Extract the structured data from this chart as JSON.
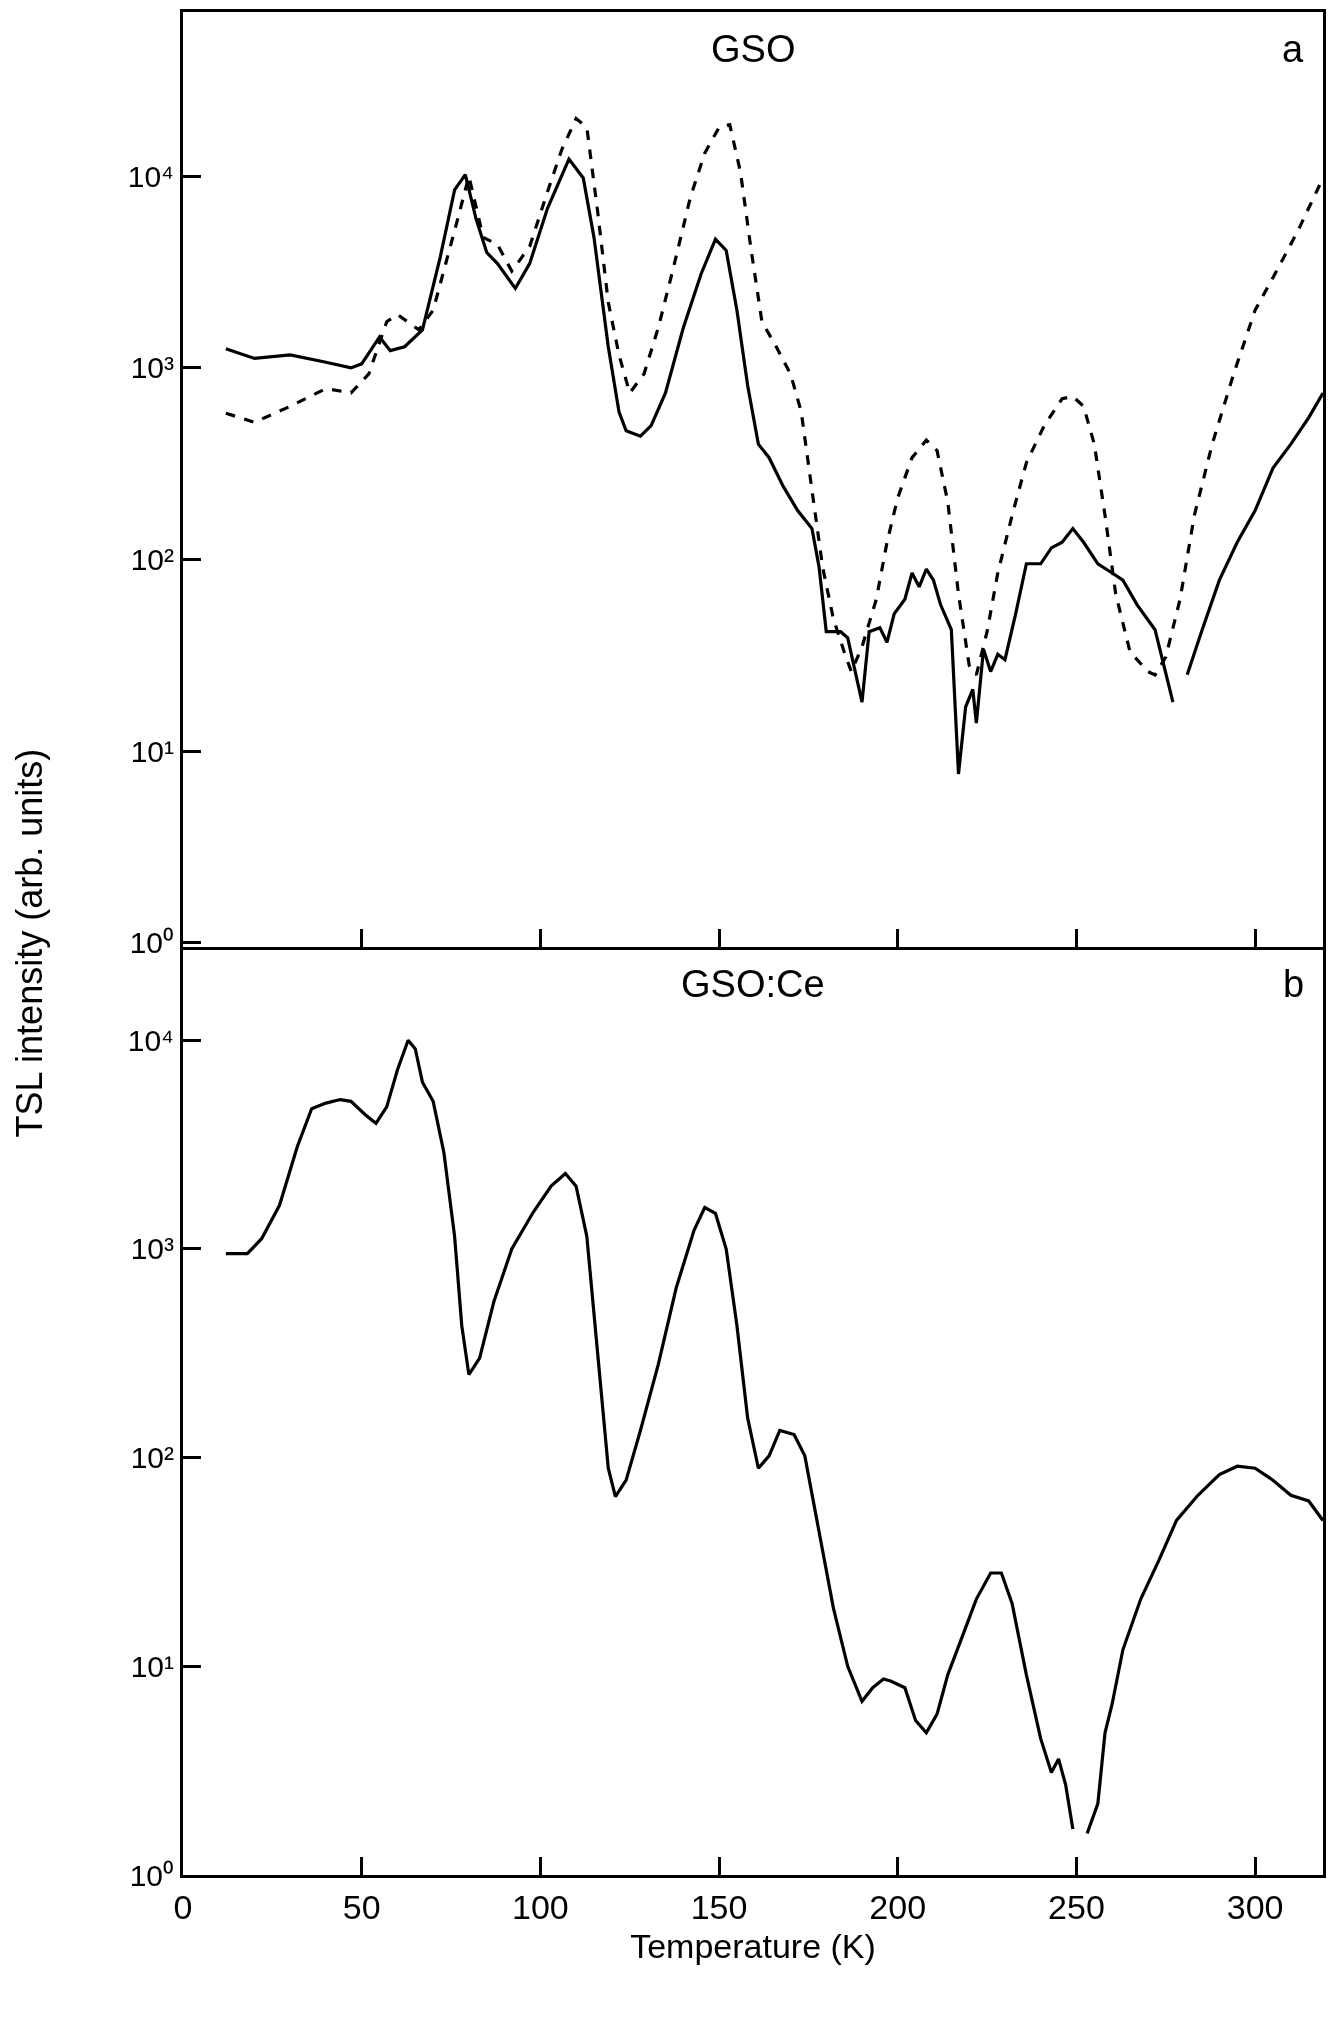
{
  "chart_data": [
    {
      "type": "line",
      "title": "GSO",
      "annotations": [
        "a"
      ],
      "ylabel": "TSL intensity (arb. units)",
      "log": "y",
      "grid": false,
      "marker": "none",
      "tick_labels": "y",
      "xlim": [
        0,
        319
      ],
      "xticks": [
        0,
        50,
        100,
        150,
        200,
        250,
        300
      ],
      "ylim": [
        0.95,
        72000
      ],
      "yticks": [
        {
          "value": 1,
          "label": "10⁰"
        },
        {
          "value": 10,
          "label": "10¹"
        },
        {
          "value": 100,
          "label": "10²"
        },
        {
          "value": 1000,
          "label": "10³"
        },
        {
          "value": 10000,
          "label": "10⁴"
        }
      ],
      "series": [
        {
          "color": "#000000",
          "line_style": "solid",
          "x": [
            12,
            20,
            30,
            40,
            47,
            50,
            55,
            58,
            62,
            67,
            72,
            76,
            79,
            82,
            85,
            88,
            93,
            97,
            102,
            108,
            112,
            115,
            119,
            122,
            124,
            128,
            131,
            135,
            140,
            145,
            149,
            152,
            155,
            158,
            161,
            164,
            168,
            172,
            176,
            178,
            180,
            184,
            186,
            190,
            192,
            195,
            197,
            199,
            202,
            204,
            206,
            208,
            210,
            212,
            215,
            217,
            219,
            221,
            222,
            224,
            226,
            228,
            230,
            233,
            236,
            240,
            243,
            246,
            249,
            252,
            256,
            260,
            263,
            267,
            272,
            277,
            279,
            281,
            285,
            290,
            295,
            300,
            305,
            310,
            315,
            319
          ],
          "values": [
            1260,
            1120,
            1170,
            1070,
            1000,
            1050,
            1450,
            1230,
            1290,
            1580,
            3800,
            8500,
            10200,
            6000,
            4000,
            3500,
            2600,
            3500,
            6800,
            12300,
            9800,
            4800,
            1290,
            590,
            470,
            440,
            500,
            740,
            1620,
            3100,
            4700,
            4100,
            2000,
            810,
            400,
            340,
            240,
            180,
            145,
            91,
            42,
            42,
            39,
            18,
            42,
            44,
            37,
            52,
            62,
            85,
            72,
            89,
            78,
            58,
            43,
            7.6,
            17,
            21,
            14,
            34,
            26,
            32,
            30,
            52,
            95,
            95,
            115,
            123,
            145,
            123,
            95,
            85,
            78,
            58,
            43,
            18,
            null,
            25,
            42,
            78,
            123,
            180,
            300,
            400,
            550,
            740
          ]
        },
        {
          "color": "#000000",
          "line_style": "dashed",
          "x": [
            12,
            20,
            30,
            40,
            47,
            52,
            57,
            60,
            66,
            70,
            76,
            80,
            84,
            88,
            92,
            97,
            102,
            106,
            110,
            113,
            116,
            119,
            122,
            125,
            129,
            133,
            137,
            142,
            146,
            150,
            153,
            156,
            159,
            162,
            166,
            170,
            173,
            176,
            179,
            182,
            185,
            187,
            190,
            194,
            197,
            200,
            204,
            208,
            211,
            214,
            217,
            220,
            222,
            225,
            228,
            232,
            236,
            241,
            246,
            249,
            252,
            255,
            258,
            261,
            265,
            270,
            272,
            275,
            279,
            283,
            288,
            294,
            300,
            306,
            312,
            319
          ],
          "values": [
            580,
            520,
            630,
            780,
            740,
            930,
            1740,
            1900,
            1580,
            2000,
            5200,
            10000,
            4800,
            4400,
            3200,
            4300,
            8300,
            13800,
            20000,
            18000,
            6600,
            2200,
            1170,
            740,
            930,
            1620,
            3200,
            7800,
            13200,
            18000,
            18600,
            10500,
            4100,
            1740,
            1290,
            930,
            590,
            230,
            91,
            49,
            33,
            26,
            35,
            62,
            123,
            210,
            340,
            420,
            370,
            200,
            66,
            28,
            25,
            42,
            85,
            170,
            320,
            500,
            690,
            710,
            630,
            400,
            170,
            66,
            33,
            26,
            25,
            31,
            62,
            170,
            400,
            930,
            2000,
            3200,
            5200,
            9800
          ]
        }
      ]
    },
    {
      "type": "line",
      "title": "GSO:Ce",
      "annotations": [
        "b"
      ],
      "xlabel": "Temperature (K)",
      "log": "y",
      "grid": false,
      "marker": "none",
      "xlim": [
        0,
        319
      ],
      "xticks": [
        0,
        50,
        100,
        150,
        200,
        250,
        300
      ],
      "ylim": [
        1,
        28000
      ],
      "yticks": [
        {
          "value": 1,
          "label": "10⁰"
        },
        {
          "value": 10,
          "label": "10¹"
        },
        {
          "value": 100,
          "label": "10²"
        },
        {
          "value": 1000,
          "label": "10³"
        },
        {
          "value": 10000,
          "label": "10⁴"
        }
      ],
      "series": [
        {
          "color": "#000000",
          "line_style": "solid",
          "x": [
            12,
            18,
            22,
            27,
            32,
            36,
            40,
            44,
            47,
            51,
            54,
            57,
            60,
            63,
            65,
            67,
            70,
            73,
            76,
            78,
            80,
            83,
            87,
            92,
            98,
            103,
            107,
            110,
            113,
            116,
            119,
            121,
            124,
            128,
            133,
            138,
            143,
            146,
            149,
            152,
            155,
            158,
            161,
            164,
            167,
            171,
            174,
            178,
            182,
            186,
            190,
            193,
            196,
            198,
            202,
            205,
            208,
            211,
            214,
            218,
            222,
            226,
            229,
            232,
            236,
            240,
            243,
            245,
            247,
            249,
            251,
            253,
            256,
            258,
            260,
            263,
            268,
            273,
            278,
            284,
            290,
            295,
            300,
            305,
            310,
            315,
            319
          ],
          "values": [
            950,
            950,
            1120,
            1620,
            3100,
            4700,
            5000,
            5200,
            5100,
            4400,
            4000,
            4800,
            7200,
            10000,
            9100,
            6300,
            5100,
            2900,
            1150,
            430,
            250,
            300,
            560,
            1000,
            1500,
            2000,
            2300,
            2000,
            1150,
            320,
            89,
            65,
            78,
            135,
            280,
            650,
            1230,
            1580,
            1480,
            1000,
            430,
            155,
            89,
            102,
            135,
            129,
            102,
            44,
            19,
            10,
            6.8,
            7.9,
            8.7,
            8.5,
            7.9,
            5.5,
            4.8,
            5.9,
            9.1,
            13.8,
            21,
            28,
            28,
            20,
            9.1,
            4.5,
            3.1,
            3.6,
            2.7,
            1.66,
            null,
            1.58,
            2.2,
            4.8,
            6.6,
            12,
            21,
            32,
            50,
            66,
            83,
            91,
            89,
            78,
            66,
            62,
            50
          ]
        }
      ]
    }
  ]
}
